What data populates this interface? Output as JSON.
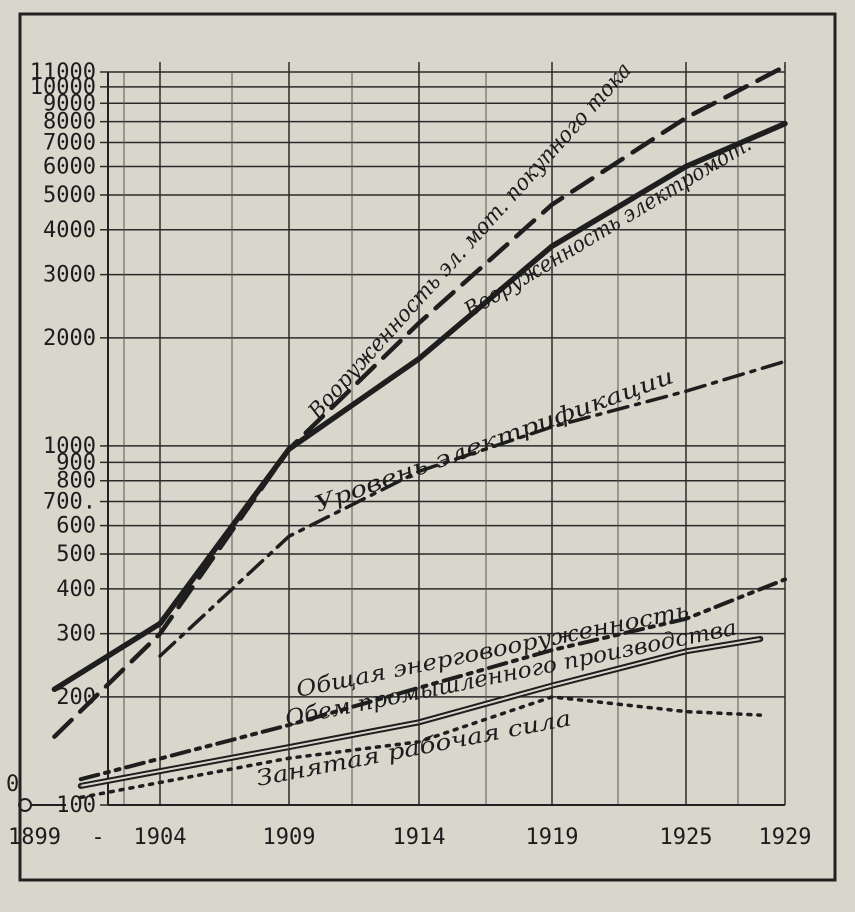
{
  "chart_data": {
    "type": "line",
    "title": "",
    "xlabel": "",
    "ylabel": "",
    "yscale": "log",
    "ylim": [
      100,
      11000
    ],
    "xlim": [
      1899,
      1929
    ],
    "grid": true,
    "legend": "none",
    "origin_label": "0",
    "x_dash": "-",
    "x_ticks": [
      {
        "value": 1899,
        "label": "1899"
      },
      {
        "value": 1904,
        "label": "1904"
      },
      {
        "value": 1909,
        "label": "1909"
      },
      {
        "value": 1914,
        "label": "1914"
      },
      {
        "value": 1919,
        "label": "1919"
      },
      {
        "value": 1925,
        "label": "1925"
      },
      {
        "value": 1929,
        "label": "1929"
      }
    ],
    "y_ticks": [
      {
        "value": 100,
        "label": "100"
      },
      {
        "value": 200,
        "label": "200"
      },
      {
        "value": 300,
        "label": "300"
      },
      {
        "value": 400,
        "label": "400"
      },
      {
        "value": 500,
        "label": "500"
      },
      {
        "value": 600,
        "label": "600"
      },
      {
        "value": 700,
        "label": "700."
      },
      {
        "value": 800,
        "label": "800"
      },
      {
        "value": 900,
        "label": "900"
      },
      {
        "value": 1000,
        "label": "1000"
      },
      {
        "value": 2000,
        "label": "2000"
      },
      {
        "value": 3000,
        "label": "3000"
      },
      {
        "value": 4000,
        "label": "4000"
      },
      {
        "value": 5000,
        "label": "5000"
      },
      {
        "value": 6000,
        "label": "6000"
      },
      {
        "value": 7000,
        "label": "7000"
      },
      {
        "value": 8000,
        "label": "8000"
      },
      {
        "value": 9000,
        "label": "9000"
      },
      {
        "value": 10000,
        "label": "10000"
      },
      {
        "value": 11000,
        "label": "11000"
      }
    ],
    "series": [
      {
        "name": "Вооруженность эл. мот. покупного тока",
        "style": "dashed",
        "color": "#1e1e1e",
        "points": [
          [
            1900,
            155
          ],
          [
            1904,
            300
          ],
          [
            1909,
            980
          ],
          [
            1914,
            2200
          ],
          [
            1919,
            4700
          ],
          [
            1925,
            8200
          ],
          [
            1929,
            11400
          ]
        ]
      },
      {
        "name": "Вооруженность электромот.",
        "style": "solid-thick",
        "color": "#1e1e1e",
        "points": [
          [
            1900,
            210
          ],
          [
            1904,
            320
          ],
          [
            1909,
            980
          ],
          [
            1914,
            1750
          ],
          [
            1919,
            3600
          ],
          [
            1925,
            6000
          ],
          [
            1929,
            7900
          ]
        ]
      },
      {
        "name": "Уровень электрификации",
        "style": "dashdot",
        "color": "#1e1e1e",
        "points": [
          [
            1904,
            260
          ],
          [
            1909,
            560
          ],
          [
            1914,
            850
          ],
          [
            1919,
            1130
          ],
          [
            1925,
            1420
          ],
          [
            1929,
            1720
          ]
        ]
      },
      {
        "name": "Общая энерговооруженность",
        "style": "dashdotdot",
        "color": "#1e1e1e",
        "points": [
          [
            1901,
            118
          ],
          [
            1909,
            167
          ],
          [
            1914,
            212
          ],
          [
            1919,
            270
          ],
          [
            1925,
            330
          ],
          [
            1929,
            425
          ]
        ]
      },
      {
        "name": "Обем промышленного производства",
        "style": "double",
        "color": "#1e1e1e",
        "points": [
          [
            1901,
            113
          ],
          [
            1909,
            145
          ],
          [
            1914,
            170
          ],
          [
            1919,
            215
          ],
          [
            1925,
            268
          ],
          [
            1928,
            290
          ]
        ]
      },
      {
        "name": "Занятая рабочая сила",
        "style": "dotted",
        "color": "#1e1e1e",
        "points": [
          [
            1901,
            105
          ],
          [
            1909,
            135
          ],
          [
            1914,
            150
          ],
          [
            1919,
            200
          ],
          [
            1925,
            182
          ],
          [
            1928,
            178
          ]
        ]
      }
    ]
  }
}
